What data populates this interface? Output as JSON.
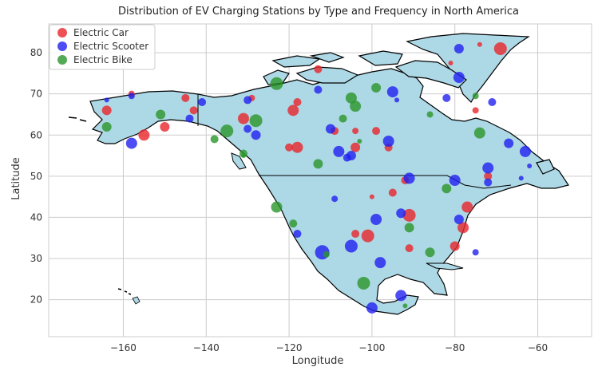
{
  "chart_data": {
    "type": "scatter",
    "title": "Distribution of EV Charging Stations by Type and Frequency in North America",
    "xlabel": "Longitude",
    "ylabel": "Latitude",
    "xlim": [
      -178,
      -47
    ],
    "ylim": [
      11,
      87
    ],
    "xticks": [
      -160,
      -140,
      -120,
      -100,
      -80,
      -60
    ],
    "yticks": [
      20,
      30,
      40,
      50,
      60,
      70,
      80
    ],
    "grid": true,
    "legend_position": "top-left",
    "background_map": "North America land outline",
    "colors": {
      "land": "#add8e6",
      "outline": "#000000",
      "grid": "#cccccc",
      "axes_edge": "#cccccc"
    },
    "series": [
      {
        "name": "Electric Car",
        "color": "#e8262b",
        "points": [
          [
            -69,
            81,
            8
          ],
          [
            -74,
            82,
            3
          ],
          [
            -81,
            77.5,
            3
          ],
          [
            -113,
            76,
            5
          ],
          [
            -164,
            66,
            6
          ],
          [
            -158,
            70,
            4
          ],
          [
            -145,
            69,
            5
          ],
          [
            -143,
            66,
            5
          ],
          [
            -155,
            60,
            7
          ],
          [
            -150,
            62,
            6
          ],
          [
            -131,
            64,
            7
          ],
          [
            -118,
            68,
            5
          ],
          [
            -129,
            69,
            4
          ],
          [
            -119,
            66,
            7
          ],
          [
            -120,
            57,
            5
          ],
          [
            -118,
            57,
            7
          ],
          [
            -109,
            61,
            5
          ],
          [
            -104,
            61,
            4
          ],
          [
            -99,
            61,
            5
          ],
          [
            -104,
            57,
            6
          ],
          [
            -96,
            57,
            5
          ],
          [
            -95,
            46,
            5
          ],
          [
            -100,
            45,
            3
          ],
          [
            -104,
            36,
            5
          ],
          [
            -101,
            35.5,
            8
          ],
          [
            -91,
            40.5,
            8
          ],
          [
            -91,
            32.5,
            5
          ],
          [
            -80,
            33,
            6
          ],
          [
            -78,
            37.5,
            7
          ],
          [
            -77,
            42.5,
            7
          ],
          [
            -75,
            66,
            4
          ],
          [
            -72,
            50,
            5
          ],
          [
            -92,
            49,
            5
          ]
        ]
      },
      {
        "name": "Electric Scooter",
        "color": "#2020f0",
        "points": [
          [
            -63,
            56,
            7
          ],
          [
            -62,
            52.5,
            3
          ],
          [
            -64,
            49.5,
            3
          ],
          [
            -72,
            52,
            7
          ],
          [
            -67,
            58,
            6
          ],
          [
            -72,
            48.5,
            5
          ],
          [
            -71,
            68,
            5
          ],
          [
            -79,
            74,
            7
          ],
          [
            -79,
            81,
            6
          ],
          [
            -82,
            69,
            5
          ],
          [
            -95,
            70.5,
            7
          ],
          [
            -94,
            68.5,
            3
          ],
          [
            -113,
            71,
            5
          ],
          [
            -110,
            61.5,
            6
          ],
          [
            -108,
            56,
            7
          ],
          [
            -105,
            55,
            6
          ],
          [
            -106,
            54.5,
            5
          ],
          [
            -96,
            58.5,
            7
          ],
          [
            -91,
            49.5,
            7
          ],
          [
            -128,
            60,
            6
          ],
          [
            -130,
            61.5,
            5
          ],
          [
            -130,
            68.5,
            5
          ],
          [
            -141,
            68,
            5
          ],
          [
            -144,
            64,
            5
          ],
          [
            -158,
            58,
            7
          ],
          [
            -109,
            44.5,
            4
          ],
          [
            -99,
            39.5,
            7
          ],
          [
            -93,
            41,
            6
          ],
          [
            -80,
            49,
            7
          ],
          [
            -79,
            39.5,
            6
          ],
          [
            -112,
            31.5,
            9
          ],
          [
            -105,
            33,
            8
          ],
          [
            -98,
            29,
            7
          ],
          [
            -118,
            36,
            5
          ],
          [
            -93,
            21,
            7
          ],
          [
            -100,
            18,
            7
          ],
          [
            -75,
            31.5,
            4
          ],
          [
            -164,
            68.5,
            3
          ],
          [
            -158,
            69.5,
            4
          ]
        ]
      },
      {
        "name": "Electric Bike",
        "color": "#2a962a",
        "points": [
          [
            -164,
            62,
            6
          ],
          [
            -151,
            65,
            6
          ],
          [
            -135,
            61,
            8
          ],
          [
            -138,
            59,
            5
          ],
          [
            -131,
            55.5,
            5
          ],
          [
            -128,
            63.5,
            8
          ],
          [
            -123,
            72.5,
            8
          ],
          [
            -105,
            69,
            7
          ],
          [
            -104,
            67,
            7
          ],
          [
            -99,
            71.5,
            6
          ],
          [
            -86,
            65,
            4
          ],
          [
            -75,
            69.5,
            4
          ],
          [
            -74,
            60.5,
            7
          ],
          [
            -107,
            64,
            5
          ],
          [
            -103,
            58.5,
            3
          ],
          [
            -113,
            53,
            6
          ],
          [
            -123,
            42.5,
            7
          ],
          [
            -119,
            38.5,
            5
          ],
          [
            -111,
            31,
            4
          ],
          [
            -91,
            37.5,
            6
          ],
          [
            -82,
            47,
            6
          ],
          [
            -102,
            24,
            8
          ],
          [
            -86,
            31.5,
            6
          ],
          [
            -92,
            18.5,
            3
          ],
          [
            -131,
            55,
            3
          ]
        ]
      }
    ]
  }
}
